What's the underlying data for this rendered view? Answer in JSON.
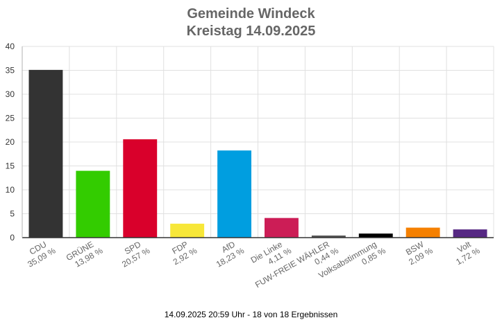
{
  "title": "Gemeinde Windeck",
  "subtitle": "Kreistag 14.09.2025",
  "footer": "14.09.2025 20:59 Uhr - 18 von 18 Ergebnissen",
  "chart_data": {
    "type": "bar",
    "ylim": [
      0,
      40
    ],
    "yticks": [
      0,
      5,
      10,
      15,
      20,
      25,
      30,
      35,
      40
    ],
    "grid": true,
    "categories": [
      "CDU",
      "GRÜNE",
      "SPD",
      "FDP",
      "AfD",
      "Die Linke",
      "FUW-FREIE WÄHLER",
      "Volksabstimmung",
      "BSW",
      "Volt"
    ],
    "values": [
      35.09,
      13.98,
      20.57,
      2.92,
      18.23,
      4.11,
      0.44,
      0.85,
      2.09,
      1.72
    ],
    "value_labels": [
      "35,09 %",
      "13,98 %",
      "20,57 %",
      "2,92 %",
      "18,23 %",
      "4,11 %",
      "0,44 %",
      "0,85 %",
      "2,09 %",
      "1,72 %"
    ],
    "colors": [
      "#333333",
      "#33cc00",
      "#d9002b",
      "#f7e739",
      "#009ee0",
      "#cc1d56",
      "#555555",
      "#000000",
      "#f58000",
      "#562883"
    ]
  }
}
